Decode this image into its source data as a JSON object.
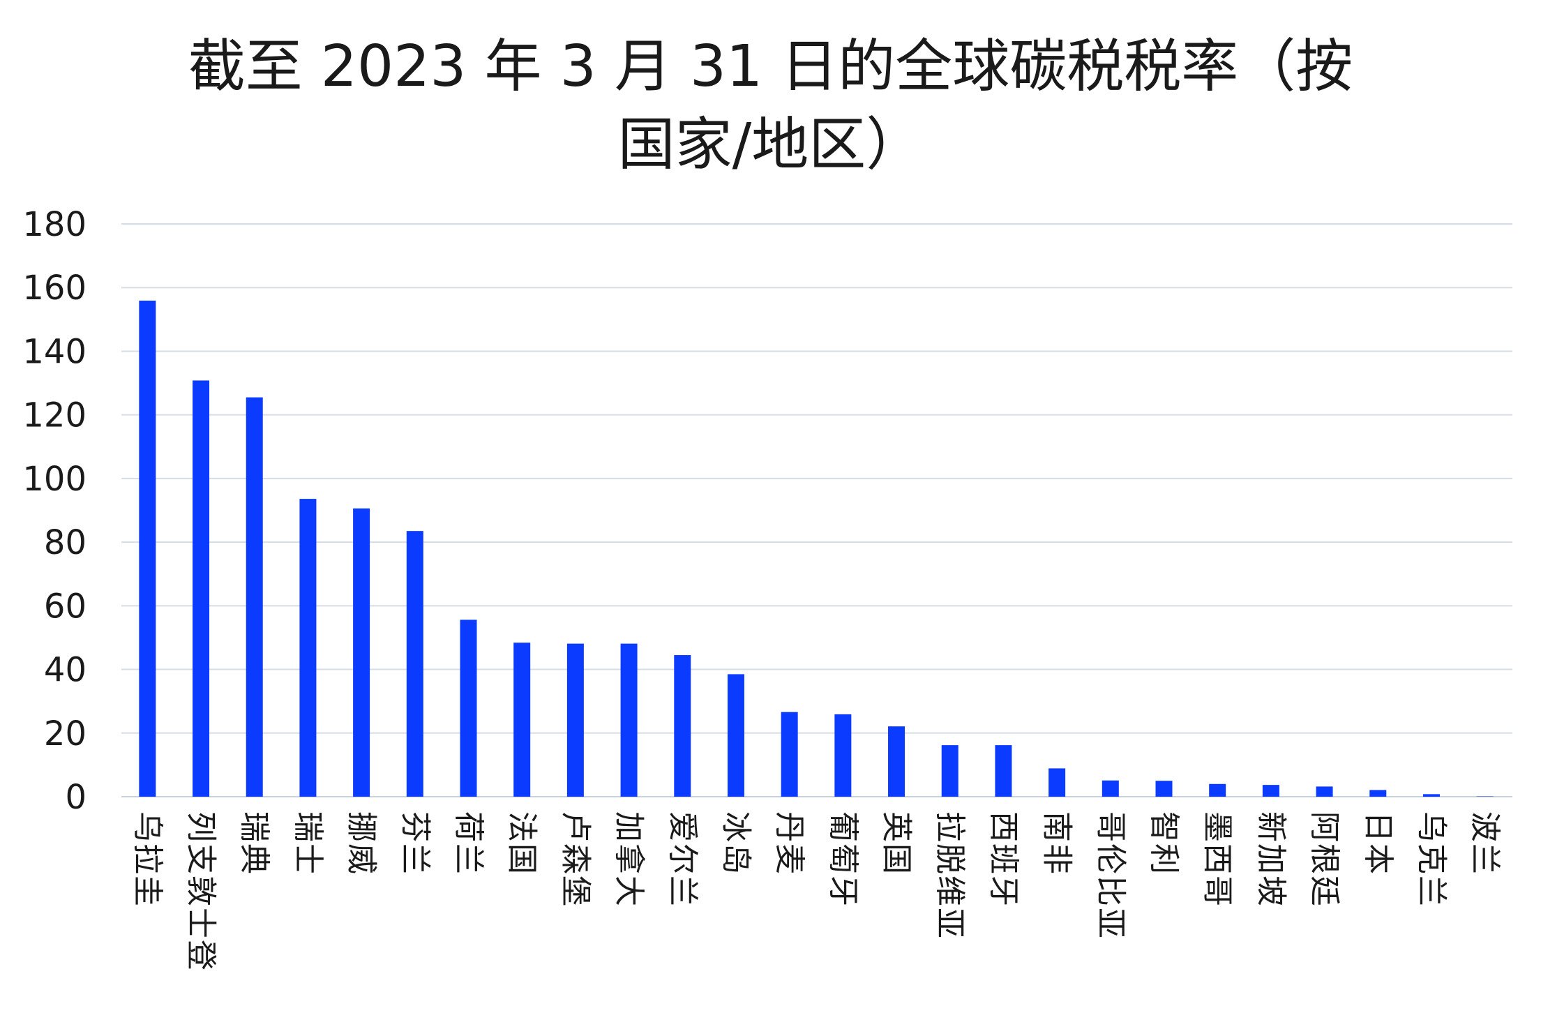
{
  "chart_data": {
    "type": "bar",
    "title_lines": [
      "截至 2023 年 3 月 31 日的全球碳税税率（按",
      "国家/地区）"
    ],
    "xlabel": "",
    "ylabel": "",
    "ylim": [
      0,
      180
    ],
    "yticks": [
      0,
      20,
      40,
      60,
      80,
      100,
      120,
      140,
      160,
      180
    ],
    "grid": true,
    "legend": "none",
    "bar_color": "#0b3bff",
    "grid_color": "#d6dde6",
    "categories": [
      "乌拉圭",
      "列支敦士登",
      "瑞典",
      "瑞士",
      "挪威",
      "芬兰",
      "荷兰",
      "法国",
      "卢森堡",
      "加拿大",
      "爱尔兰",
      "冰岛",
      "丹麦",
      "葡萄牙",
      "英国",
      "拉脱维亚",
      "西班牙",
      "南非",
      "哥伦比亚",
      "智利",
      "墨西哥",
      "新加坡",
      "阿根廷",
      "日本",
      "乌克兰",
      "波兰"
    ],
    "values": [
      155.9,
      130.8,
      125.5,
      93.6,
      90.6,
      83.5,
      55.6,
      48.4,
      48.1,
      48.1,
      44.5,
      38.5,
      26.6,
      25.9,
      22.1,
      16.2,
      16.2,
      8.9,
      5.1,
      5.0,
      4.0,
      3.7,
      3.2,
      2.1,
      0.8,
      0.1
    ]
  }
}
